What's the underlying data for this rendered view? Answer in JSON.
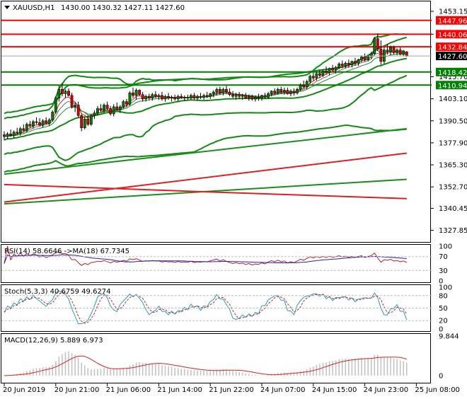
{
  "header": {
    "symbol": "XAUUSD,H1",
    "ohlc": "1430.00 1430.32 1427.11 1427.60"
  },
  "colors": {
    "bull": "#008000",
    "bear": "#e00000",
    "hline_red": "#ff0000",
    "hline_green": "#008000",
    "bb": "#138a13",
    "ma_red": "#e02020",
    "ma_green": "#1a8f1a",
    "ema_grey": "#707070",
    "rsi": "#2020c0",
    "rsi_ma": "#c02020",
    "stoch_main": "#20a0c0",
    "stoch_signal": "#d02020",
    "macd_hist": "#c0c0c0",
    "macd_signal": "#e02020",
    "last_price_bg": "#000000"
  },
  "price_axis": {
    "ticks": [
      "1453.15",
      "1440.06",
      "1415.70",
      "1403.10",
      "1390.50",
      "1377.90",
      "1365.30",
      "1352.70",
      "1340.45",
      "1327.85"
    ],
    "tick_values": [
      1453.15,
      1440.06,
      1415.7,
      1403.1,
      1390.5,
      1377.9,
      1365.3,
      1352.7,
      1340.45,
      1327.85
    ]
  },
  "hlines": [
    {
      "label": "1447.96",
      "value": 1447.96,
      "color": "red"
    },
    {
      "label": "1440.06",
      "value": 1440.06,
      "color": "red"
    },
    {
      "label": "1432.84",
      "value": 1432.84,
      "color": "red"
    },
    {
      "label": "1418.42",
      "value": 1418.42,
      "color": "green"
    },
    {
      "label": "1410.94",
      "value": 1410.94,
      "color": "green"
    }
  ],
  "last_price": {
    "label": "1427.60",
    "value": 1427.6
  },
  "time_axis": {
    "labels": [
      "20 Jun 2019",
      "20 Jun 21:00",
      "21 Jun 06:00",
      "21 Jun 14:00",
      "21 Jun 22:00",
      "24 Jun 07:00",
      "24 Jun 15:00",
      "24 Jun 23:00",
      "25 Jun 08:00"
    ],
    "label_bars": [
      0,
      16,
      32,
      48,
      64,
      80,
      96,
      112,
      128
    ]
  },
  "rsi_panel": {
    "label": "RSI(14) 58.6646 ->MA(18) 67.7345",
    "ticks": [
      "100",
      "70",
      "30",
      "0"
    ],
    "tick_values": [
      100,
      70,
      30,
      0
    ]
  },
  "stoch_panel": {
    "label": "Stoch(5,3,3) 40.6759 49.6274",
    "ticks": [
      "100",
      "80",
      "50",
      "20",
      "0"
    ],
    "tick_values": [
      100,
      80,
      50,
      20,
      0
    ]
  },
  "macd_panel": {
    "label": "MACD(12,26,9) 5.889 6.973",
    "ticks": [
      "9.844",
      "0"
    ],
    "tick_values": [
      9.844,
      0
    ]
  },
  "chart_data": {
    "type": "candlestick",
    "symbol": "XAUUSD",
    "timeframe": "H1",
    "ylim": [
      1322,
      1458
    ],
    "first_bar_time": "20 Jun 2019",
    "candles": [
      [
        1382.5,
        1384.5,
        1379.5,
        1381.5
      ],
      [
        1381.5,
        1384.0,
        1380.0,
        1383.0
      ],
      [
        1383.0,
        1385.5,
        1381.5,
        1382.0
      ],
      [
        1382.0,
        1385.0,
        1380.5,
        1384.0
      ],
      [
        1384.0,
        1386.5,
        1382.5,
        1383.5
      ],
      [
        1383.5,
        1387.0,
        1382.0,
        1386.0
      ],
      [
        1386.0,
        1388.5,
        1384.5,
        1385.0
      ],
      [
        1385.0,
        1389.5,
        1384.0,
        1388.5
      ],
      [
        1388.5,
        1390.5,
        1386.5,
        1387.5
      ],
      [
        1387.5,
        1391.0,
        1386.0,
        1390.0
      ],
      [
        1390.0,
        1392.5,
        1388.5,
        1389.5
      ],
      [
        1389.5,
        1392.0,
        1387.5,
        1388.0
      ],
      [
        1388.0,
        1391.5,
        1386.5,
        1390.5
      ],
      [
        1390.5,
        1392.5,
        1388.5,
        1389.0
      ],
      [
        1389.0,
        1392.0,
        1387.5,
        1391.0
      ],
      [
        1391.0,
        1396.5,
        1390.0,
        1395.5
      ],
      [
        1395.5,
        1404.5,
        1394.5,
        1403.5
      ],
      [
        1403.5,
        1410.5,
        1401.5,
        1408.5
      ],
      [
        1408.5,
        1412.0,
        1404.5,
        1406.0
      ],
      [
        1406.0,
        1408.5,
        1403.5,
        1407.5
      ],
      [
        1407.5,
        1409.0,
        1404.5,
        1405.0
      ],
      [
        1405.0,
        1406.5,
        1397.5,
        1398.5
      ],
      [
        1398.5,
        1401.0,
        1395.5,
        1399.5
      ],
      [
        1399.5,
        1401.5,
        1392.5,
        1393.5
      ],
      [
        1393.5,
        1394.5,
        1384.5,
        1386.5
      ],
      [
        1386.5,
        1392.5,
        1385.5,
        1391.5
      ],
      [
        1391.5,
        1393.5,
        1387.5,
        1388.5
      ],
      [
        1388.5,
        1394.5,
        1387.5,
        1393.5
      ],
      [
        1393.5,
        1396.5,
        1391.5,
        1395.0
      ],
      [
        1395.0,
        1399.0,
        1393.5,
        1397.5
      ],
      [
        1397.5,
        1400.0,
        1395.5,
        1396.5
      ],
      [
        1396.5,
        1400.5,
        1395.0,
        1399.5
      ],
      [
        1399.5,
        1401.5,
        1396.5,
        1397.5
      ],
      [
        1397.5,
        1399.0,
        1393.5,
        1394.5
      ],
      [
        1394.5,
        1400.0,
        1393.0,
        1398.5
      ],
      [
        1398.5,
        1401.0,
        1396.5,
        1397.0
      ],
      [
        1397.0,
        1399.5,
        1395.0,
        1398.5
      ],
      [
        1398.5,
        1402.5,
        1397.5,
        1401.5
      ],
      [
        1401.5,
        1403.0,
        1398.5,
        1400.0
      ],
      [
        1400.0,
        1407.5,
        1399.0,
        1406.5
      ],
      [
        1406.5,
        1409.5,
        1403.5,
        1405.0
      ],
      [
        1405.0,
        1409.0,
        1402.5,
        1408.0
      ],
      [
        1408.0,
        1408.5,
        1404.5,
        1405.5
      ],
      [
        1405.5,
        1407.0,
        1401.5,
        1403.0
      ],
      [
        1403.0,
        1405.5,
        1401.5,
        1404.5
      ],
      [
        1404.5,
        1406.0,
        1402.5,
        1403.5
      ],
      [
        1403.5,
        1406.5,
        1402.0,
        1405.5
      ],
      [
        1405.5,
        1407.5,
        1403.5,
        1404.5
      ],
      [
        1404.5,
        1406.0,
        1402.5,
        1405.0
      ],
      [
        1405.0,
        1407.0,
        1402.0,
        1403.0
      ],
      [
        1403.0,
        1405.5,
        1401.5,
        1404.5
      ],
      [
        1404.5,
        1406.5,
        1402.5,
        1403.5
      ],
      [
        1403.5,
        1405.0,
        1401.5,
        1404.0
      ],
      [
        1404.0,
        1405.5,
        1402.0,
        1403.0
      ],
      [
        1403.0,
        1405.5,
        1401.5,
        1404.5
      ],
      [
        1404.5,
        1406.0,
        1403.0,
        1403.5
      ],
      [
        1403.5,
        1405.0,
        1402.0,
        1404.0
      ],
      [
        1404.0,
        1405.5,
        1402.5,
        1403.5
      ],
      [
        1403.5,
        1406.0,
        1402.5,
        1405.0
      ],
      [
        1405.0,
        1406.5,
        1402.5,
        1403.5
      ],
      [
        1403.5,
        1405.5,
        1402.0,
        1404.5
      ],
      [
        1404.5,
        1406.5,
        1403.0,
        1404.0
      ],
      [
        1404.0,
        1406.0,
        1402.5,
        1405.0
      ],
      [
        1405.0,
        1407.0,
        1403.5,
        1404.5
      ],
      [
        1404.5,
        1406.5,
        1403.0,
        1406.0
      ],
      [
        1406.0,
        1408.0,
        1404.0,
        1407.0
      ],
      [
        1407.0,
        1409.5,
        1405.0,
        1408.5
      ],
      [
        1408.5,
        1410.0,
        1405.5,
        1406.5
      ],
      [
        1406.5,
        1409.5,
        1405.0,
        1408.5
      ],
      [
        1408.5,
        1410.5,
        1406.0,
        1407.0
      ],
      [
        1407.0,
        1409.0,
        1404.5,
        1405.5
      ],
      [
        1405.5,
        1407.5,
        1403.5,
        1404.5
      ],
      [
        1404.5,
        1406.5,
        1402.5,
        1405.5
      ],
      [
        1405.5,
        1407.0,
        1403.0,
        1404.5
      ],
      [
        1404.5,
        1406.0,
        1402.5,
        1405.0
      ],
      [
        1405.0,
        1406.5,
        1403.0,
        1403.5
      ],
      [
        1403.5,
        1405.5,
        1402.0,
        1404.5
      ],
      [
        1404.5,
        1405.5,
        1402.0,
        1403.0
      ],
      [
        1403.0,
        1405.0,
        1401.5,
        1404.0
      ],
      [
        1404.0,
        1406.0,
        1402.0,
        1403.5
      ],
      [
        1403.5,
        1405.5,
        1402.0,
        1405.0
      ],
      [
        1405.0,
        1406.5,
        1403.0,
        1404.0
      ],
      [
        1404.0,
        1407.0,
        1403.0,
        1406.0
      ],
      [
        1406.0,
        1408.0,
        1404.5,
        1407.5
      ],
      [
        1407.5,
        1409.0,
        1405.5,
        1406.5
      ],
      [
        1406.5,
        1409.5,
        1405.5,
        1408.5
      ],
      [
        1408.5,
        1410.0,
        1406.0,
        1407.0
      ],
      [
        1407.0,
        1409.5,
        1405.5,
        1408.0
      ],
      [
        1408.0,
        1409.5,
        1405.5,
        1406.0
      ],
      [
        1406.0,
        1408.5,
        1404.5,
        1407.5
      ],
      [
        1407.5,
        1409.0,
        1405.0,
        1406.5
      ],
      [
        1406.5,
        1409.5,
        1405.5,
        1408.5
      ],
      [
        1408.5,
        1412.0,
        1407.5,
        1411.0
      ],
      [
        1411.0,
        1413.5,
        1409.0,
        1410.0
      ],
      [
        1410.0,
        1414.0,
        1408.5,
        1413.0
      ],
      [
        1413.0,
        1417.0,
        1411.5,
        1416.0
      ],
      [
        1416.0,
        1418.0,
        1413.5,
        1415.0
      ],
      [
        1415.0,
        1418.5,
        1413.5,
        1417.5
      ],
      [
        1417.5,
        1419.5,
        1415.0,
        1416.5
      ],
      [
        1416.5,
        1420.0,
        1415.5,
        1419.0
      ],
      [
        1419.0,
        1421.5,
        1417.0,
        1418.0
      ],
      [
        1418.0,
        1421.0,
        1416.5,
        1420.5
      ],
      [
        1420.5,
        1422.5,
        1418.5,
        1419.5
      ],
      [
        1419.5,
        1422.0,
        1417.5,
        1421.0
      ],
      [
        1421.0,
        1424.0,
        1420.0,
        1423.0
      ],
      [
        1423.0,
        1425.0,
        1420.5,
        1422.0
      ],
      [
        1422.0,
        1424.5,
        1420.5,
        1423.5
      ],
      [
        1423.5,
        1425.5,
        1421.0,
        1422.5
      ],
      [
        1422.5,
        1425.0,
        1421.0,
        1424.5
      ],
      [
        1424.5,
        1426.5,
        1422.0,
        1423.5
      ],
      [
        1423.5,
        1426.0,
        1422.0,
        1425.5
      ],
      [
        1425.5,
        1428.0,
        1424.0,
        1427.0
      ],
      [
        1427.0,
        1429.0,
        1424.5,
        1425.5
      ],
      [
        1425.5,
        1428.5,
        1424.5,
        1427.5
      ],
      [
        1427.5,
        1430.0,
        1426.0,
        1429.0
      ],
      [
        1429.0,
        1438.5,
        1428.0,
        1437.5
      ],
      [
        1437.5,
        1440.5,
        1430.5,
        1431.5
      ],
      [
        1431.5,
        1436.5,
        1422.5,
        1424.5
      ],
      [
        1424.5,
        1432.5,
        1423.0,
        1431.0
      ],
      [
        1431.0,
        1434.5,
        1428.5,
        1430.0
      ],
      [
        1430.0,
        1433.5,
        1428.0,
        1432.5
      ],
      [
        1432.5,
        1433.5,
        1428.5,
        1429.5
      ],
      [
        1429.5,
        1432.0,
        1428.0,
        1431.0
      ],
      [
        1431.0,
        1432.5,
        1428.0,
        1428.5
      ],
      [
        1428.5,
        1431.0,
        1427.5,
        1430.5
      ],
      [
        1430.0,
        1430.32,
        1427.11,
        1427.6
      ]
    ]
  }
}
